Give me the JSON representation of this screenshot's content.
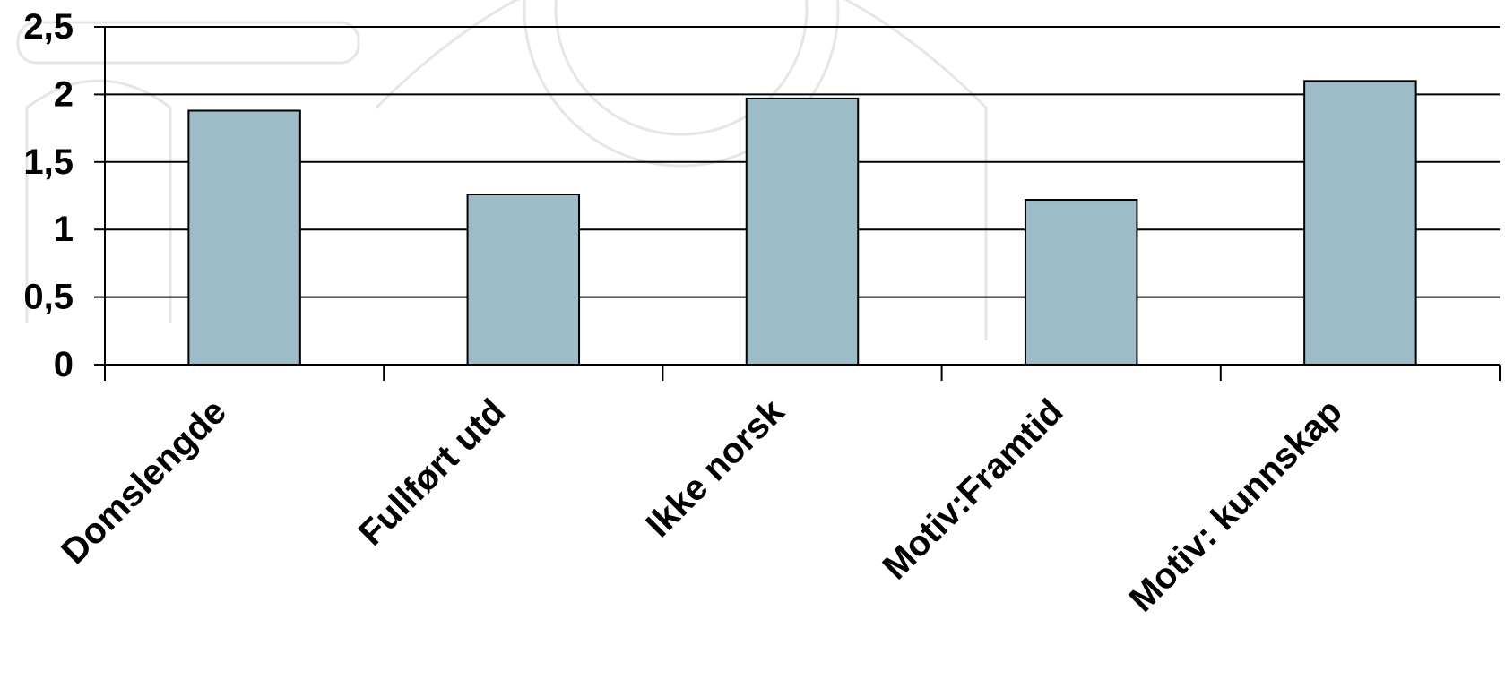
{
  "chart_data": {
    "type": "bar",
    "categories": [
      "Domslengde",
      "Fullført utd",
      "Ikke norsk",
      "Motiv:Framtid",
      "Motiv: kunnskap"
    ],
    "values": [
      1.88,
      1.26,
      1.97,
      1.22,
      2.1
    ],
    "y_tick_labels": [
      "0",
      "0,5",
      "1",
      "1,5",
      "2",
      "2,5"
    ],
    "ylim": [
      0,
      2.5
    ],
    "y_step": 0.5,
    "grid": true,
    "legend": "none",
    "title": "",
    "xlabel": "",
    "ylabel": "",
    "colors": {
      "bar_fill": "#9dbcc8",
      "bar_stroke": "#000000",
      "grid": "#000000",
      "axis": "#000000",
      "background": "#ffffff"
    }
  }
}
